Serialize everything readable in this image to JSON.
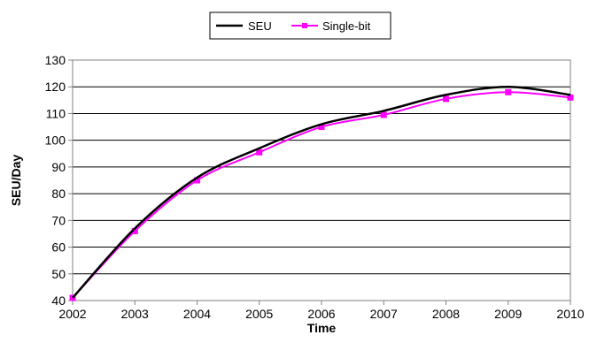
{
  "chart_data": {
    "type": "line",
    "title": "",
    "xlabel": "Time",
    "ylabel": "SEU/Day",
    "x": [
      2002,
      2003,
      2004,
      2005,
      2006,
      2007,
      2008,
      2009,
      2010
    ],
    "x_tick_labels": [
      "2002",
      "2003",
      "2004",
      "2005",
      "2006",
      "2007",
      "2008",
      "2009",
      "2010"
    ],
    "y_tick_labels": [
      "40",
      "50",
      "60",
      "70",
      "80",
      "90",
      "100",
      "110",
      "120",
      "130"
    ],
    "ylim": [
      40,
      130
    ],
    "xlim": [
      2002,
      2010
    ],
    "grid": "horizontal",
    "legend_position": "top-center",
    "series": [
      {
        "name": "SEU",
        "color": "#000000",
        "marker": "none",
        "values": [
          41,
          67,
          86,
          97,
          106,
          111,
          117,
          120,
          117
        ]
      },
      {
        "name": "Single-bit",
        "color": "#ff00ff",
        "marker": "square",
        "values": [
          41,
          66,
          85,
          95.5,
          105,
          109.5,
          115.5,
          118,
          116
        ]
      }
    ]
  }
}
